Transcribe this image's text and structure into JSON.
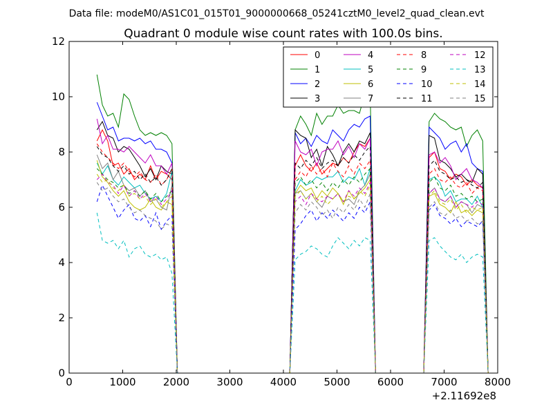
{
  "suptitle": "Data file: modeM0/AS1C01_015T01_9000000668_05241cztM0_level2_quad_clean.evt",
  "chart_data": {
    "type": "line",
    "title": "Quadrant 0 module wise count rates with 100.0s bins.",
    "xlabel": "",
    "ylabel": "",
    "x_offset_label": "+2.11692e8",
    "xlim": [
      0,
      8000
    ],
    "ylim": [
      0,
      12
    ],
    "x_ticks": [
      0,
      1000,
      2000,
      3000,
      4000,
      5000,
      6000,
      7000,
      8000
    ],
    "y_ticks": [
      0,
      2,
      4,
      6,
      8,
      10,
      12
    ],
    "grid": false,
    "legend": {
      "placement": "top-right",
      "columns": 4
    },
    "segments": [
      {
        "x_start": 520,
        "x_step": 100,
        "n": 15
      },
      {
        "x_start": 4220,
        "x_step": 100,
        "n": 15
      },
      {
        "x_start": 6720,
        "x_step": 100,
        "n": 11
      }
    ],
    "series": [
      {
        "name": "0",
        "color": "#ff0000",
        "dash": false,
        "seg": [
          [
            8.4,
            8.8,
            8.4,
            7.5,
            7.6,
            7.2,
            7.4,
            7.0,
            7.2,
            7.0,
            7.5,
            7.0,
            7.3,
            7.2,
            7.0
          ],
          [
            7.5,
            7.9,
            7.5,
            7.3,
            7.6,
            7.2,
            7.4,
            7.6,
            7.5,
            7.8,
            7.6,
            8.0,
            8.3,
            8.2,
            8.5
          ],
          [
            7.8,
            8.0,
            7.4,
            7.3,
            7.0,
            7.2,
            7.1,
            6.8,
            7.0,
            6.8,
            6.7
          ]
        ]
      },
      {
        "name": "1",
        "color": "#008000",
        "dash": false,
        "seg": [
          [
            10.8,
            9.7,
            9.3,
            9.4,
            8.9,
            10.1,
            9.9,
            9.3,
            8.8,
            8.6,
            8.7,
            8.6,
            8.7,
            8.6,
            8.3
          ],
          [
            8.8,
            9.3,
            9.0,
            8.6,
            9.4,
            9.0,
            9.3,
            9.3,
            9.7,
            9.4,
            9.5,
            9.5,
            9.4,
            10.1,
            10.2
          ],
          [
            9.1,
            9.4,
            9.2,
            9.1,
            8.9,
            8.8,
            8.9,
            8.2,
            8.6,
            8.8,
            8.4
          ]
        ]
      },
      {
        "name": "2",
        "color": "#0000ff",
        "dash": false,
        "seg": [
          [
            9.8,
            9.3,
            8.8,
            8.9,
            8.4,
            8.5,
            8.5,
            8.4,
            8.5,
            8.3,
            8.4,
            8.1,
            8.1,
            8.0,
            7.6
          ],
          [
            8.7,
            8.3,
            8.5,
            8.2,
            8.6,
            8.4,
            8.3,
            8.8,
            8.6,
            8.4,
            8.8,
            9.0,
            8.9,
            9.2,
            9.3
          ],
          [
            8.9,
            8.7,
            8.5,
            8.1,
            8.3,
            8.4,
            8.0,
            8.3,
            7.6,
            7.4,
            7.3
          ]
        ]
      },
      {
        "name": "3",
        "color": "#000000",
        "dash": false,
        "seg": [
          [
            8.8,
            9.1,
            8.6,
            8.5,
            8.0,
            8.2,
            8.1,
            7.8,
            7.5,
            7.1,
            7.4,
            7.0,
            7.5,
            7.3,
            7.2
          ],
          [
            8.8,
            8.6,
            8.5,
            7.8,
            8.1,
            7.5,
            8.2,
            7.9,
            7.5,
            8.0,
            8.3,
            8.0,
            8.4,
            8.3,
            8.7
          ],
          [
            8.6,
            8.5,
            7.7,
            7.6,
            7.4,
            7.1,
            7.2,
            7.0,
            6.9,
            7.4,
            7.2
          ]
        ]
      },
      {
        "name": "4",
        "color": "#bf00bf",
        "dash": false,
        "seg": [
          [
            9.2,
            8.3,
            8.6,
            8.1,
            8.1,
            8.0,
            8.2,
            8.0,
            7.8,
            7.6,
            7.9,
            7.5,
            7.5,
            7.2,
            7.6
          ],
          [
            8.4,
            8.0,
            7.9,
            8.1,
            7.5,
            8.0,
            8.1,
            8.1,
            8.4,
            7.9,
            8.2,
            7.8,
            8.3,
            8.1,
            8.5
          ],
          [
            7.9,
            8.0,
            7.6,
            7.8,
            7.5,
            7.0,
            7.2,
            7.4,
            7.0,
            6.9,
            6.7
          ]
        ]
      },
      {
        "name": "5",
        "color": "#00bfbf",
        "dash": false,
        "seg": [
          [
            7.6,
            7.2,
            7.5,
            7.0,
            6.8,
            7.1,
            6.9,
            6.7,
            6.8,
            6.5,
            6.3,
            6.4,
            6.2,
            6.5,
            7.3
          ],
          [
            6.6,
            7.0,
            6.8,
            6.9,
            7.1,
            7.0,
            7.1,
            7.1,
            7.3,
            6.9,
            7.1,
            7.0,
            7.4,
            6.8,
            7.4
          ],
          [
            7.0,
            7.1,
            6.9,
            6.4,
            6.6,
            6.2,
            6.3,
            6.3,
            6.1,
            6.4,
            6.0
          ]
        ]
      },
      {
        "name": "6",
        "color": "#bfbf00",
        "dash": false,
        "seg": [
          [
            7.7,
            7.1,
            6.9,
            6.6,
            6.4,
            6.6,
            6.2,
            6.0,
            5.9,
            6.0,
            6.3,
            6.0,
            5.9,
            6.2,
            6.1
          ],
          [
            6.5,
            6.8,
            6.6,
            6.7,
            6.3,
            6.6,
            6.4,
            6.7,
            6.5,
            6.1,
            6.6,
            6.3,
            6.5,
            6.7,
            7.0
          ],
          [
            6.4,
            6.5,
            6.1,
            6.0,
            5.8,
            6.2,
            5.8,
            5.9,
            5.7,
            5.9,
            5.8
          ]
        ]
      },
      {
        "name": "7",
        "color": "#808080",
        "dash": false,
        "seg": [
          [
            7.9,
            7.4,
            7.6,
            7.0,
            7.3,
            6.8,
            6.6,
            6.7,
            6.4,
            6.6,
            6.2,
            6.3,
            6.0,
            5.9,
            6.8
          ],
          [
            6.5,
            6.6,
            6.3,
            6.5,
            6.2,
            6.0,
            6.4,
            6.3,
            6.5,
            6.2,
            6.3,
            6.1,
            6.6,
            6.8,
            7.2
          ],
          [
            6.5,
            6.7,
            6.3,
            6.2,
            6.4,
            6.0,
            6.2,
            6.1,
            5.8,
            6.1,
            6.0
          ]
        ]
      },
      {
        "name": "8",
        "color": "#ff0000",
        "dash": true,
        "seg": [
          [
            8.3,
            8.0,
            7.8,
            7.6,
            7.4,
            7.6,
            7.3,
            7.1,
            7.3,
            7.0,
            6.9,
            7.2,
            6.8,
            7.0,
            7.4
          ],
          [
            7.0,
            7.3,
            7.1,
            7.5,
            7.2,
            7.4,
            7.1,
            7.6,
            7.3,
            7.1,
            7.5,
            7.2,
            7.6,
            7.4,
            7.7
          ],
          [
            7.2,
            7.4,
            7.0,
            6.9,
            7.1,
            6.8,
            6.7,
            6.9,
            6.5,
            6.7,
            6.6
          ]
        ]
      },
      {
        "name": "9",
        "color": "#008000",
        "dash": true,
        "seg": [
          [
            7.4,
            7.2,
            7.0,
            6.9,
            6.7,
            6.8,
            6.5,
            6.6,
            6.4,
            6.6,
            6.3,
            6.5,
            6.2,
            6.4,
            6.6
          ],
          [
            6.9,
            7.1,
            6.8,
            7.0,
            6.7,
            6.9,
            6.6,
            6.9,
            6.7,
            7.0,
            6.8,
            7.1,
            6.9,
            7.2,
            7.4
          ],
          [
            6.9,
            7.1,
            6.7,
            6.6,
            6.8,
            6.4,
            6.5,
            6.3,
            6.4,
            6.2,
            6.3
          ]
        ]
      },
      {
        "name": "10",
        "color": "#0000ff",
        "dash": true,
        "seg": [
          [
            6.2,
            6.8,
            6.4,
            6.0,
            5.6,
            5.9,
            6.1,
            5.6,
            5.5,
            5.7,
            5.3,
            5.8,
            5.2,
            5.5,
            5.7
          ],
          [
            5.2,
            5.4,
            5.7,
            5.9,
            5.5,
            5.8,
            5.6,
            5.9,
            5.7,
            5.5,
            5.8,
            5.6,
            6.0,
            5.8,
            6.2
          ],
          [
            5.9,
            6.1,
            5.7,
            5.6,
            5.4,
            5.6,
            5.3,
            5.5,
            5.4,
            5.3,
            5.5
          ]
        ]
      },
      {
        "name": "11",
        "color": "#000000",
        "dash": true,
        "seg": [
          [
            8.2,
            7.9,
            7.8,
            7.5,
            7.3,
            7.5,
            7.2,
            7.3,
            7.0,
            7.2,
            6.9,
            7.1,
            6.8,
            7.0,
            7.4
          ],
          [
            7.6,
            7.4,
            7.7,
            7.5,
            7.8,
            7.4,
            7.6,
            7.7,
            7.5,
            7.8,
            7.6,
            7.9,
            7.7,
            8.0,
            8.2
          ],
          [
            7.5,
            7.7,
            7.3,
            7.2,
            7.0,
            7.1,
            6.9,
            7.0,
            6.8,
            6.7,
            6.9
          ]
        ]
      },
      {
        "name": "12",
        "color": "#bf00bf",
        "dash": true,
        "seg": [
          [
            7.0,
            7.2,
            6.9,
            6.8,
            6.5,
            6.8,
            6.4,
            6.6,
            6.3,
            6.5,
            6.2,
            6.4,
            6.1,
            6.3,
            6.6
          ],
          [
            6.2,
            6.4,
            6.1,
            6.5,
            6.3,
            6.2,
            6.4,
            6.3,
            6.5,
            6.2,
            6.6,
            6.4,
            6.7,
            6.5,
            6.9
          ],
          [
            6.5,
            6.7,
            6.3,
            6.2,
            6.4,
            6.0,
            6.2,
            6.1,
            6.0,
            6.2,
            6.1
          ]
        ]
      },
      {
        "name": "13",
        "color": "#00bfbf",
        "dash": true,
        "seg": [
          [
            5.8,
            4.8,
            4.7,
            4.8,
            4.5,
            4.8,
            4.2,
            4.5,
            4.6,
            4.3,
            4.2,
            4.3,
            4.1,
            4.2,
            3.6
          ],
          [
            4.1,
            4.3,
            4.4,
            4.6,
            4.5,
            4.3,
            4.2,
            4.6,
            4.9,
            4.7,
            4.5,
            4.8,
            4.6,
            4.9,
            4.8
          ],
          [
            4.8,
            4.9,
            4.6,
            4.4,
            4.2,
            4.1,
            4.3,
            4.0,
            4.2,
            4.3,
            4.2
          ]
        ]
      },
      {
        "name": "14",
        "color": "#bfbf00",
        "dash": true,
        "seg": [
          [
            7.2,
            6.9,
            7.0,
            6.7,
            6.6,
            6.8,
            6.4,
            6.5,
            6.3,
            6.4,
            6.1,
            6.3,
            6.0,
            6.2,
            6.4
          ],
          [
            6.4,
            6.6,
            6.3,
            6.5,
            6.2,
            6.4,
            6.1,
            6.3,
            6.5,
            6.2,
            6.4,
            6.3,
            6.6,
            6.4,
            6.8
          ],
          [
            6.4,
            6.6,
            6.2,
            6.1,
            6.3,
            5.9,
            6.1,
            5.8,
            6.0,
            5.9,
            6.0
          ]
        ]
      },
      {
        "name": "15",
        "color": "#808080",
        "dash": true,
        "seg": [
          [
            6.9,
            6.6,
            6.7,
            6.4,
            6.2,
            6.3,
            6.0,
            5.8,
            5.9,
            5.7,
            5.6,
            5.5,
            5.2,
            5.4,
            5.3
          ],
          [
            5.8,
            6.1,
            5.9,
            6.2,
            6.0,
            5.7,
            5.9,
            5.6,
            6.0,
            5.8,
            6.1,
            5.9,
            6.3,
            6.0,
            6.5
          ],
          [
            6.0,
            6.2,
            5.8,
            5.7,
            5.9,
            5.6,
            5.7,
            5.5,
            5.6,
            5.4,
            5.5
          ]
        ]
      }
    ]
  }
}
